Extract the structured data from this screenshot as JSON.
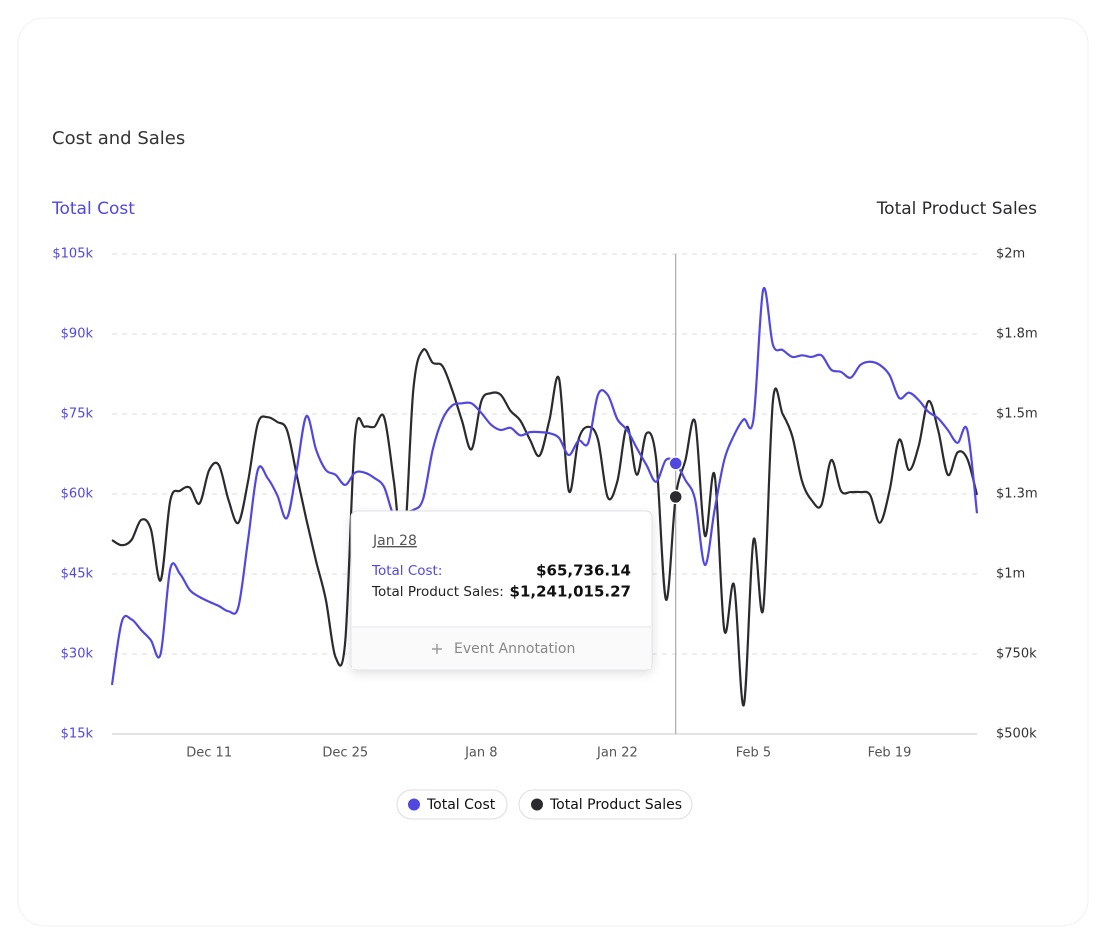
{
  "chart_data": {
    "type": "line",
    "title": "Cost and Sales",
    "y_label": "Total Cost",
    "y2_label": "Total Product Sales",
    "categories": [
      null,
      null,
      null,
      null,
      null,
      null,
      null,
      null,
      null,
      null,
      "Dec 11",
      null,
      null,
      null,
      null,
      null,
      null,
      null,
      null,
      null,
      null,
      null,
      null,
      null,
      "Dec 25",
      null,
      null,
      null,
      null,
      null,
      null,
      null,
      null,
      null,
      null,
      null,
      null,
      null,
      "Jan 8",
      null,
      null,
      null,
      null,
      null,
      null,
      null,
      null,
      null,
      null,
      null,
      null,
      null,
      "Jan 22",
      null,
      null,
      null,
      null,
      null,
      null,
      null,
      null,
      null,
      null,
      null,
      null,
      null,
      "Feb 5",
      null,
      null,
      null,
      null,
      null,
      null,
      null,
      null,
      null,
      null,
      null,
      null,
      null,
      "Feb 19",
      null,
      null,
      null,
      null,
      null,
      null,
      null,
      null,
      null
    ],
    "series": [
      {
        "name": "Total Cost",
        "color": "#5148e0",
        "axis": "y",
        "values": [
          24200,
          36000,
          36500,
          34500,
          32600,
          30000,
          46000,
          45000,
          42000,
          40700,
          39800,
          39000,
          38000,
          38800,
          51400,
          64500,
          63000,
          59800,
          55500,
          64500,
          74600,
          68300,
          64500,
          63600,
          61700,
          64000,
          64000,
          63000,
          61300,
          56000,
          56600,
          57000,
          59000,
          68300,
          74000,
          76600,
          77000,
          77000,
          75200,
          73000,
          72000,
          72400,
          71000,
          71600,
          71600,
          71400,
          70500,
          67300,
          70000,
          69600,
          78600,
          78600,
          74000,
          72000,
          68600,
          65400,
          62300,
          66400,
          65736.14,
          62600,
          58900,
          46700,
          57000,
          66400,
          71000,
          74000,
          74000,
          98300,
          88000,
          87000,
          85700,
          86000,
          85700,
          86000,
          83300,
          82900,
          81800,
          84200,
          84800,
          84200,
          82300,
          78000,
          79000,
          77600,
          75400,
          74200,
          72000,
          69600,
          72000,
          56400
        ]
      },
      {
        "name": "Total Product Sales",
        "color": "#2b2b2f",
        "axis": "y2",
        "values": [
          1106000,
          1090000,
          1106000,
          1169000,
          1140000,
          980000,
          1230000,
          1260000,
          1270000,
          1220000,
          1325000,
          1340000,
          1230000,
          1160000,
          1290000,
          1470000,
          1490000,
          1475000,
          1450000,
          1310000,
          1170000,
          1040000,
          920000,
          740000,
          790000,
          1430000,
          1460000,
          1460000,
          1490000,
          1290000,
          1070000,
          1575000,
          1700000,
          1660000,
          1650000,
          1575000,
          1480000,
          1390000,
          1540000,
          1565000,
          1560000,
          1510000,
          1480000,
          1420000,
          1370000,
          1480000,
          1610000,
          1260000,
          1420000,
          1460000,
          1420000,
          1240000,
          1290000,
          1460000,
          1310000,
          1440000,
          1356000,
          920000,
          1241015.27,
          1356000,
          1475000,
          1120000,
          1310000,
          825000,
          966000,
          590000,
          1106000,
          890000,
          1540000,
          1500000,
          1430000,
          1290000,
          1230000,
          1216000,
          1356000,
          1260000,
          1256000,
          1256000,
          1247000,
          1160000,
          1260000,
          1420000,
          1325000,
          1400000,
          1540000,
          1450000,
          1310000,
          1380000,
          1360000,
          1247000
        ]
      }
    ],
    "ylim": [
      15000,
      105000
    ],
    "yticks": [
      {
        "value": 15000,
        "label": "$15k"
      },
      {
        "value": 30000,
        "label": "$30k"
      },
      {
        "value": 45000,
        "label": "$45k"
      },
      {
        "value": 60000,
        "label": "$60k"
      },
      {
        "value": 75000,
        "label": "$75k"
      },
      {
        "value": 90000,
        "label": "$90k"
      },
      {
        "value": 105000,
        "label": "$105k"
      }
    ],
    "y2lim": [
      500000,
      2000000
    ],
    "y2ticks": [
      {
        "value": 500000,
        "label": "$500k"
      },
      {
        "value": 750000,
        "label": "$750k"
      },
      {
        "value": 1000000,
        "label": "$1m"
      },
      {
        "value": 1250000,
        "label": "$1.3m"
      },
      {
        "value": 1500000,
        "label": "$1.5m"
      },
      {
        "value": 1750000,
        "label": "$1.8m"
      },
      {
        "value": 2000000,
        "label": "$2m"
      }
    ],
    "grid": true,
    "tooltip": {
      "date": "Jan 28",
      "items": [
        {
          "name": "Total Cost:",
          "value": 65736.14,
          "label": "$65,736.14"
        },
        {
          "name": "Total Product Sales:",
          "value": 1241015.27,
          "label": "$1,241,015.27"
        }
      ],
      "action": "Event Annotation"
    }
  }
}
